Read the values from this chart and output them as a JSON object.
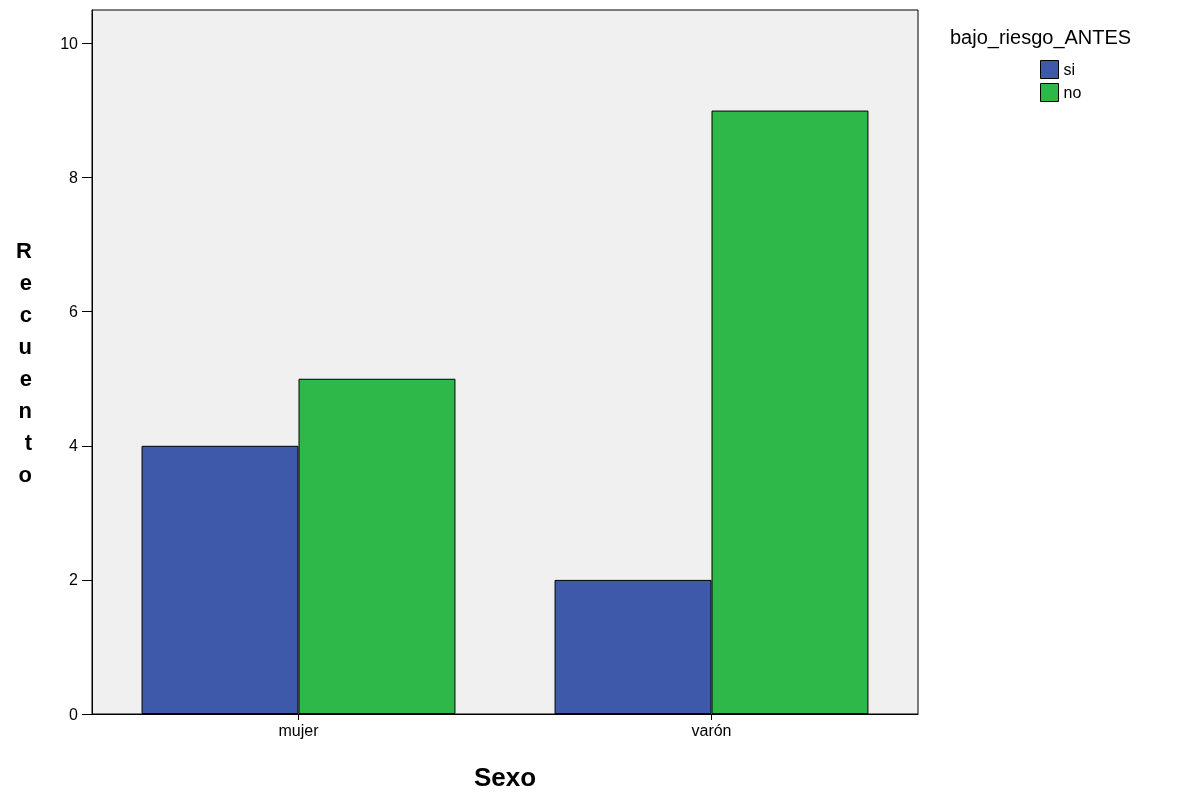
{
  "chart_data": {
    "type": "bar",
    "xlabel": "Sexo",
    "ylabel": "Recuento",
    "legend_title": "bajo_riesgo_ANTES",
    "categories": [
      "mujer",
      "varón"
    ],
    "series": [
      {
        "name": "si",
        "color": "#3f59aa",
        "values": [
          4,
          2
        ]
      },
      {
        "name": "no",
        "color": "#2fb84a",
        "values": [
          5,
          9
        ]
      }
    ],
    "ylim": [
      0,
      10.5
    ],
    "yticks": [
      0,
      2,
      4,
      6,
      8,
      10
    ],
    "grid": false,
    "legend": "top right"
  }
}
